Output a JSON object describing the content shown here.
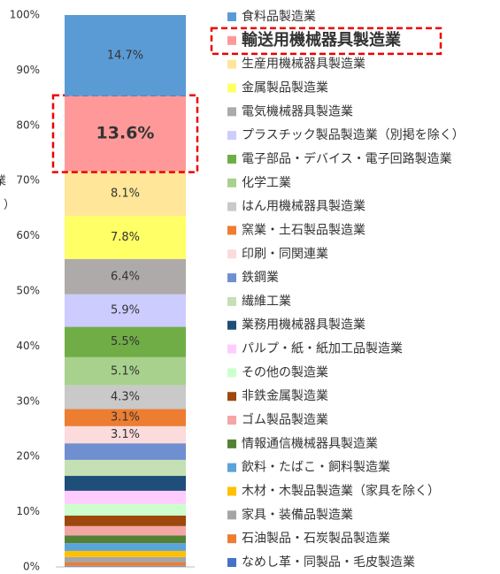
{
  "chart_data": {
    "type": "stacked_bar",
    "y_label_visible": [
      "業",
      "）"
    ],
    "ylim": [
      0,
      100
    ],
    "yticks": [
      {
        "value": 0,
        "label": "0%"
      },
      {
        "value": 10,
        "label": "10%"
      },
      {
        "value": 20,
        "label": "20%"
      },
      {
        "value": 30,
        "label": "30%"
      },
      {
        "value": 40,
        "label": "40%"
      },
      {
        "value": 50,
        "label": "50%"
      },
      {
        "value": 60,
        "label": "60%"
      },
      {
        "value": 70,
        "label": "70%"
      },
      {
        "value": 80,
        "label": "80%"
      },
      {
        "value": 90,
        "label": "90%"
      },
      {
        "value": 100,
        "label": "100%"
      }
    ],
    "series": [
      {
        "name": "食料品製造業",
        "color": "#5b9bd5",
        "values": [
          14.7
        ],
        "value_labels": [
          "14.7%"
        ]
      },
      {
        "name": "輸送用機械器具製造業",
        "color": "#ff9999",
        "values": [
          13.6
        ],
        "value_labels": [
          "13.6%"
        ],
        "emphasis": true
      },
      {
        "name": "生産用機械器具製造業",
        "color": "#ffe699",
        "values": [
          8.1
        ],
        "value_labels": [
          "8.1%"
        ]
      },
      {
        "name": "金属製品製造業",
        "color": "#ffff66",
        "values": [
          7.8
        ],
        "value_labels": [
          "7.8%"
        ]
      },
      {
        "name": "電気機械器具製造業",
        "color": "#aeaaaa",
        "values": [
          6.4
        ],
        "value_labels": [
          "6.4%"
        ]
      },
      {
        "name": "プラスチック製品製造業（別掲を除く）",
        "color": "#ccccff",
        "values": [
          5.9
        ],
        "value_labels": [
          "5.9%"
        ]
      },
      {
        "name": "電子部品・デバイス・電子回路製造業",
        "color": "#70ad47",
        "values": [
          5.5
        ],
        "value_labels": [
          "5.5%"
        ]
      },
      {
        "name": "化学工業",
        "color": "#a9d18e",
        "values": [
          5.1
        ],
        "value_labels": [
          "5.1%"
        ]
      },
      {
        "name": "はん用機械器具製造業",
        "color": "#c9c9c9",
        "values": [
          4.3
        ],
        "value_labels": [
          "4.3%"
        ]
      },
      {
        "name": "窯業・土石製品製造業",
        "color": "#ed7d31",
        "values": [
          3.1
        ],
        "value_labels": [
          "3.1%"
        ]
      },
      {
        "name": "印刷・同関連業",
        "color": "#fbdbdb",
        "values": [
          3.1
        ],
        "value_labels": [
          "3.1%"
        ]
      },
      {
        "name": "鉄鋼業",
        "color": "#6f8fd0",
        "values": [
          3.0
        ]
      },
      {
        "name": "繊維工業",
        "color": "#c5e0b4",
        "values": [
          2.9
        ]
      },
      {
        "name": "業務用機械器具製造業",
        "color": "#1f4e79",
        "values": [
          2.7
        ]
      },
      {
        "name": "パルプ・紙・紙加工品製造業",
        "color": "#ffccff",
        "values": [
          2.4
        ]
      },
      {
        "name": "その他の製造業",
        "color": "#ccffcc",
        "values": [
          2.1
        ]
      },
      {
        "name": "非鉄金属製造業",
        "color": "#9e480e",
        "values": [
          1.9
        ]
      },
      {
        "name": "ゴム製品製造業",
        "color": "#f4a6a6",
        "values": [
          1.7
        ]
      },
      {
        "name": "情報通信機械器具製造業",
        "color": "#548235",
        "values": [
          1.4
        ]
      },
      {
        "name": "飲料・たばこ・飼料製造業",
        "color": "#5ba3db",
        "values": [
          1.4
        ]
      },
      {
        "name": "木材・木製品製造業（家具を除く）",
        "color": "#ffc000",
        "values": [
          1.1
        ]
      },
      {
        "name": "家具・装備品製造業",
        "color": "#a5a5a5",
        "values": [
          1.0
        ]
      },
      {
        "name": "石油製品・石炭製品製造業",
        "color": "#ed7d31",
        "values": [
          0.6
        ]
      },
      {
        "name": "なめし革・同製品・毛皮製造業",
        "color": "#4472c4",
        "values": [
          0.2
        ]
      }
    ]
  }
}
